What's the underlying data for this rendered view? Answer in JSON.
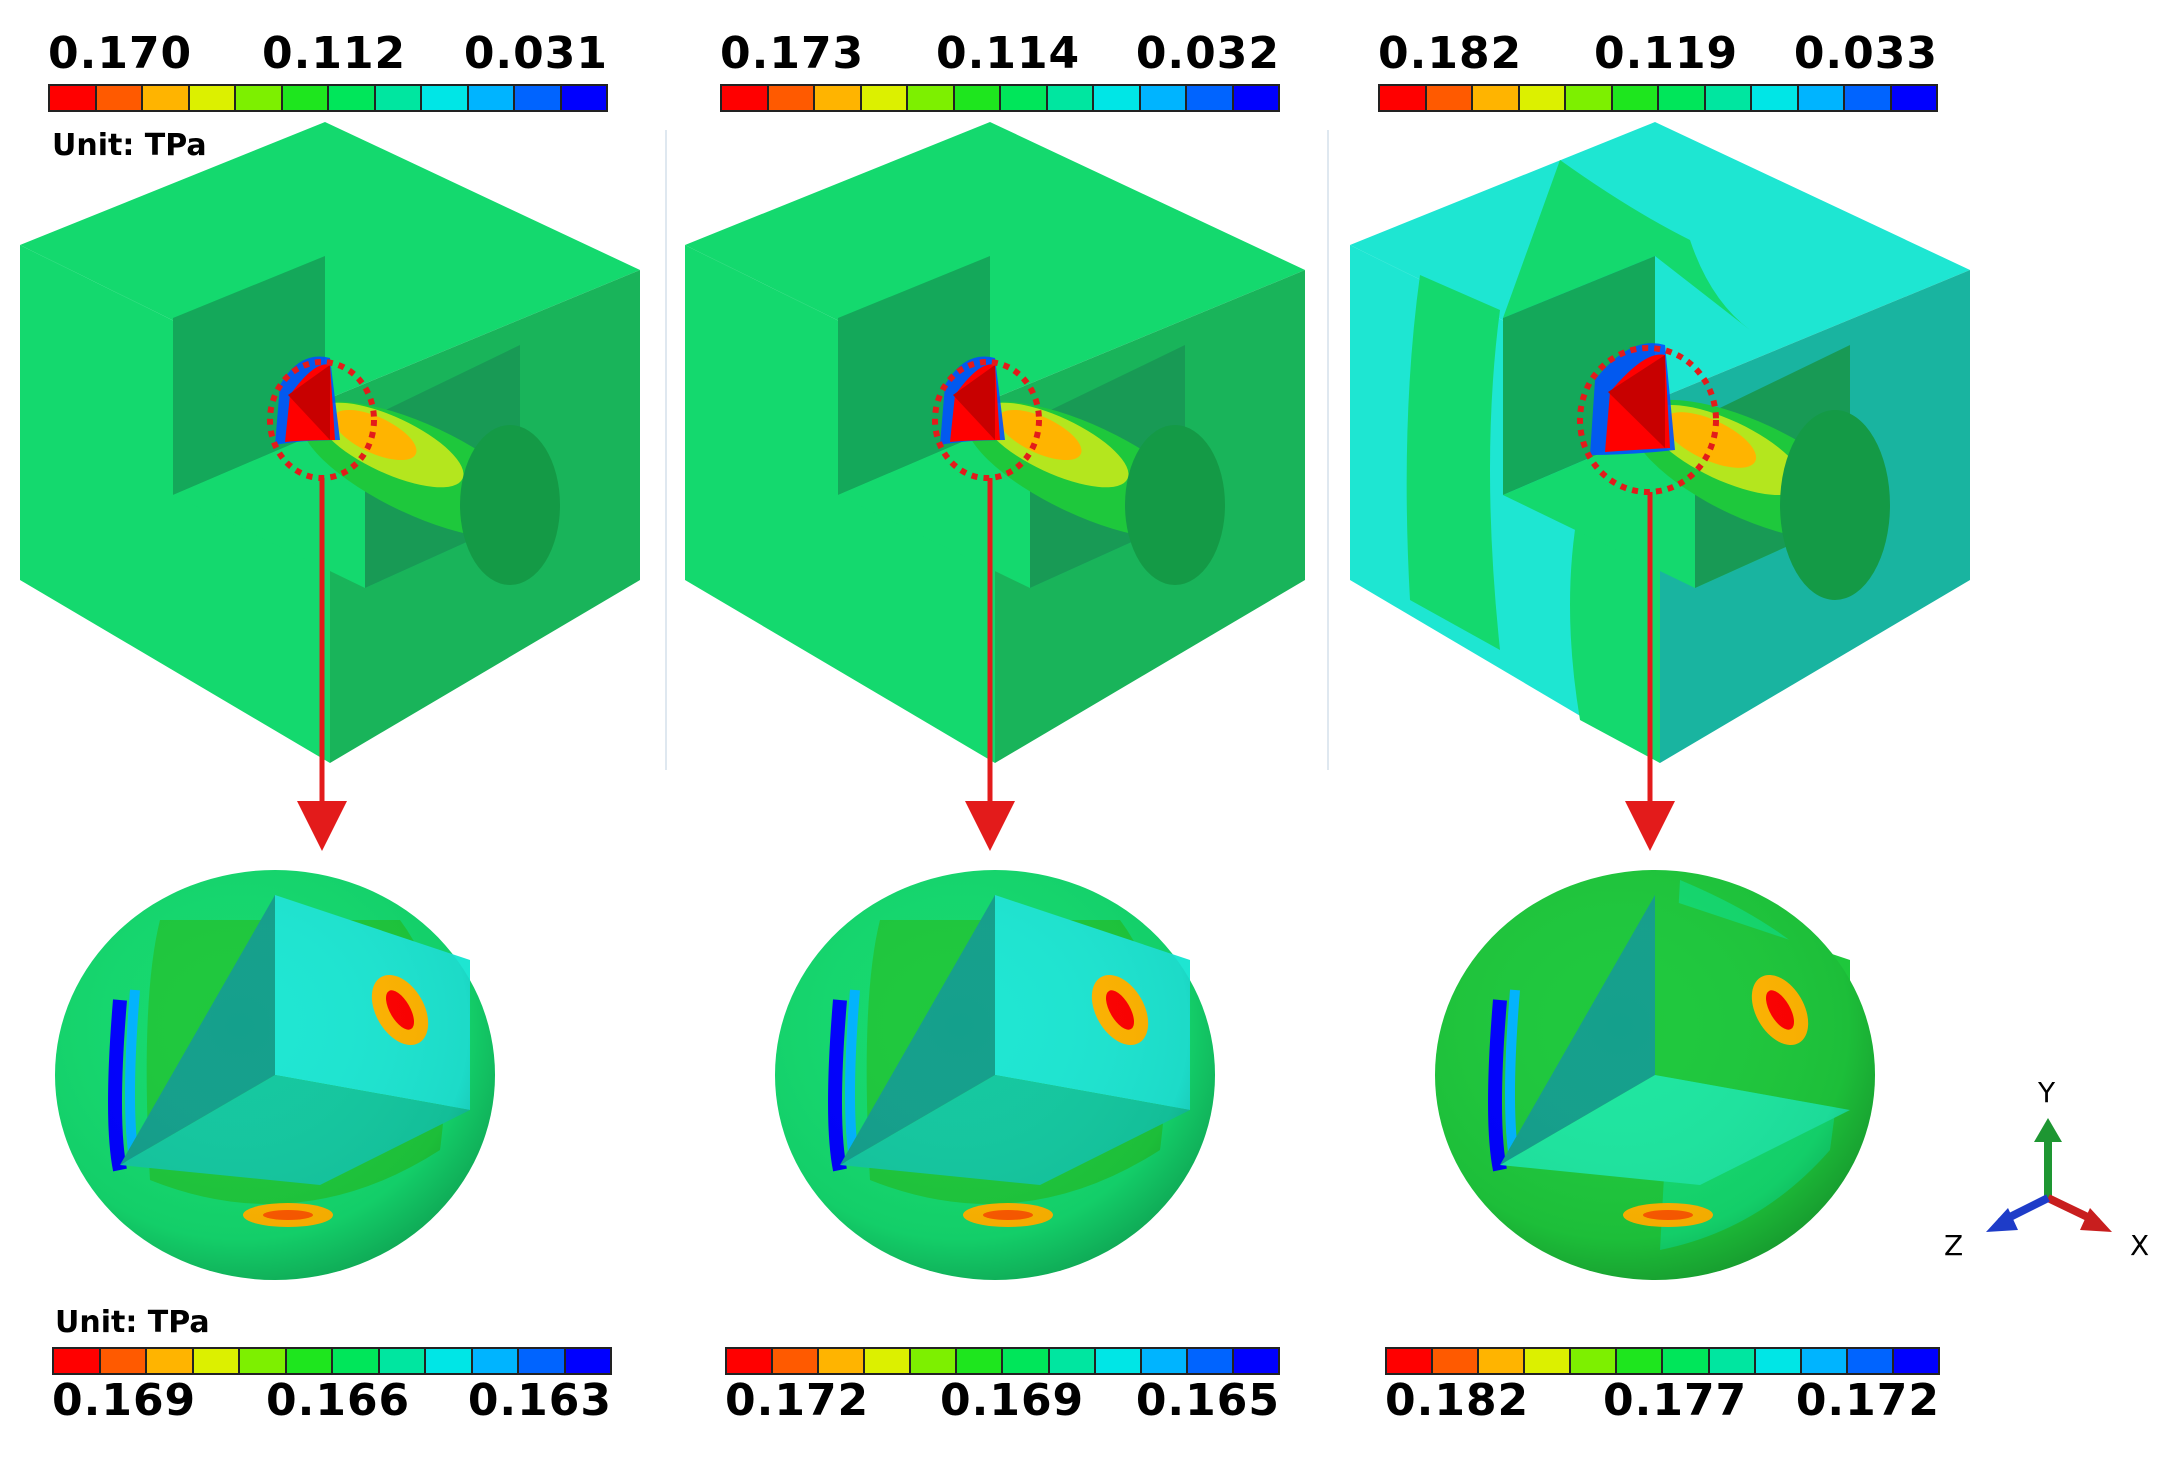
{
  "panels": [
    {
      "top_legend": {
        "max": "0.170",
        "mid": "0.112",
        "min": "0.031"
      },
      "top_unit": "Unit: TPa",
      "bottom_unit": "Unit: TPa",
      "bottom_legend": {
        "max": "0.169",
        "mid": "0.166",
        "min": "0.163"
      }
    },
    {
      "top_legend": {
        "max": "0.173",
        "mid": "0.114",
        "min": "0.032"
      },
      "bottom_legend": {
        "max": "0.172",
        "mid": "0.169",
        "min": "0.165"
      }
    },
    {
      "top_legend": {
        "max": "0.182",
        "mid": "0.119",
        "min": "0.033"
      },
      "bottom_legend": {
        "max": "0.182",
        "mid": "0.177",
        "min": "0.172"
      }
    }
  ],
  "triad": {
    "y": "Y",
    "x": "X",
    "z": "Z"
  },
  "colors": {
    "colormap": [
      "#ff0000",
      "#ff5a00",
      "#ffb400",
      "#dcf000",
      "#7df000",
      "#1ee61e",
      "#00e65a",
      "#00e6a0",
      "#00e6e6",
      "#00b4ff",
      "#0064ff",
      "#0000ff"
    ],
    "cube_face_1": "#14d96e",
    "cube_face_3": "#19b45a",
    "annotation_red": "#e31b1b"
  }
}
